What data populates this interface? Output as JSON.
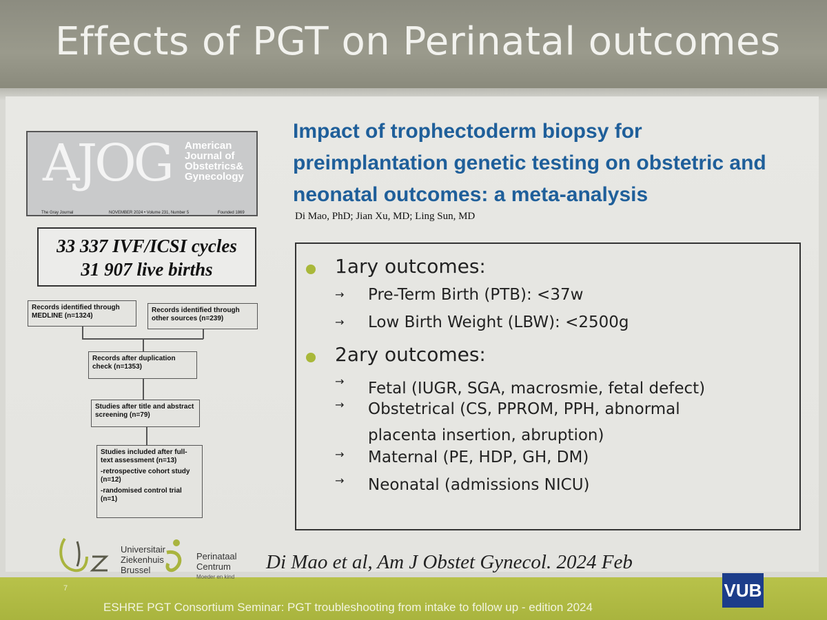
{
  "slide": {
    "title": "Effects of PGT on Perinatal outcomes",
    "slide_number": "7",
    "footer_text": "ESHRE PGT Consortium Seminar: PGT troubleshooting from intake to follow up - edition 2024"
  },
  "journal_cover": {
    "logo_text": "AJOG",
    "name_lines": [
      "American",
      "Journal of",
      "Obstetrics&",
      "Gynecology"
    ],
    "footer_left": "The Gray Journal",
    "footer_middle": "NOVEMBER 2024 • Volume 231, Number 5",
    "footer_right": "Founded 1869"
  },
  "stats": {
    "line1": "33 337 IVF/ICSI cycles",
    "line2": "31 907 live births"
  },
  "flow": {
    "medline": "Records identified through MEDLINE (n=1324)",
    "other": "Records identified through other sources (n=239)",
    "dedup": "Records after duplication check (n=1353)",
    "screen": "Studies after title and abstract screening (n=79)",
    "included": "Studies included after full-text assessment (n=13)",
    "sub1": "-retrospective cohort study (n=12)",
    "sub2": "-randomised control trial (n=1)"
  },
  "article": {
    "title_lines": [
      "Impact of trophectoderm biopsy for",
      "preimplantation genetic testing on obstetric and",
      "neonatal outcomes: a meta-analysis"
    ],
    "authors": "Di Mao, PhD; Jian Xu, MD; Ling Sun, MD"
  },
  "outcomes": {
    "primary_heading": "1ary outcomes:",
    "primary_items": [
      "Pre-Term Birth (PTB): <37w",
      "Low Birth Weight (LBW): <2500g"
    ],
    "secondary_heading": "2ary outcomes:",
    "secondary_items": [
      "Fetal (IUGR, SGA, macrosmie, fetal defect)",
      "Obstetrical (CS, PPROM, PPH, abnormal",
      "placenta insertion, abruption)",
      "Maternal (PE, HDP, GH, DM)",
      "Neonatal (admissions NICU)"
    ],
    "arrow_glyph": "→",
    "bullet_color": "#a9b83a"
  },
  "logos": {
    "uz_lines": [
      "Universitair",
      "Ziekenhuis",
      "Brussel"
    ],
    "pc_lines": [
      "Perinataal",
      "Centrum"
    ],
    "pc_tagline": "Moeder en kind",
    "vub": "VUB"
  },
  "citation": "Di Mao et al, Am J Obstet Gynecol. 2024 Feb",
  "colors": {
    "title_blue": "#1f5f9a",
    "footer_green": "#a9b43e",
    "vub_blue": "#1c3d8a"
  }
}
